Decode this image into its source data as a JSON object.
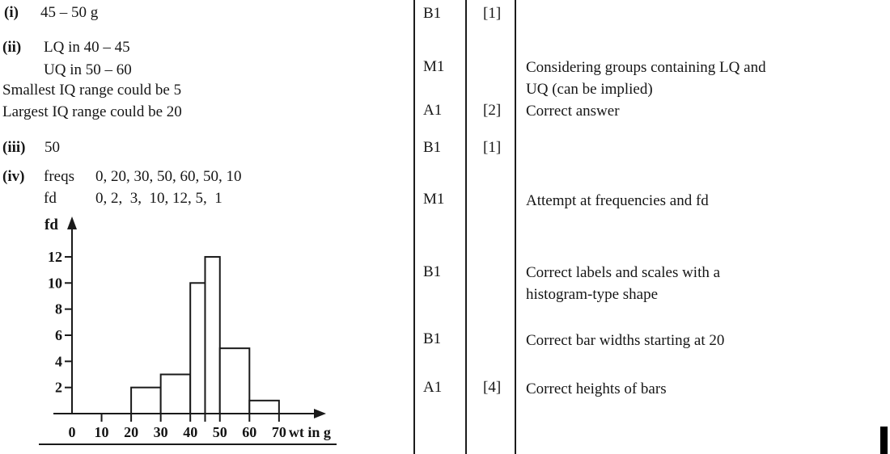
{
  "answers": {
    "part_i": {
      "marker": "(i)",
      "answer": "45 – 50 g"
    },
    "part_ii": {
      "marker": "(ii)",
      "line1": "LQ in 40 – 45",
      "line2": "UQ in 50 – 60",
      "line3": "Smallest IQ range could be 5",
      "line4": "Largest IQ range could be 20"
    },
    "part_iii": {
      "marker": "(iii)",
      "answer": "50"
    },
    "part_iv": {
      "marker": "(iv)",
      "freqs_label": "freqs",
      "freqs_values": "0, 20, 30, 50, 60, 50, 10",
      "fd_label": "fd",
      "fd_values": "0, 2,  3,  10, 12, 5,  1"
    }
  },
  "marks": [
    {
      "code": "B1",
      "total": "[1]",
      "comment": ""
    },
    {
      "code": "M1",
      "total": "",
      "comment": "Considering groups containing LQ and\nUQ (can be implied)"
    },
    {
      "code": "A1",
      "total": "[2]",
      "comment": "Correct answer"
    },
    {
      "code": "B1",
      "total": "[1]",
      "comment": ""
    },
    {
      "code": "M1",
      "total": "",
      "comment": "Attempt at frequencies and fd"
    },
    {
      "code": "B1",
      "total": "",
      "comment": "Correct labels and scales with a\nhistogram-type shape"
    },
    {
      "code": "B1",
      "total": "",
      "comment": "Correct bar widths starting at 20"
    },
    {
      "code": "A1",
      "total": "[4]",
      "comment": "Correct heights of bars"
    }
  ],
  "chart_data": {
    "type": "bar",
    "subtype": "histogram",
    "title": "",
    "ylabel": "fd",
    "xlabel": "wt in g",
    "bins": [
      [
        20,
        30
      ],
      [
        30,
        40
      ],
      [
        40,
        45
      ],
      [
        45,
        50
      ],
      [
        50,
        60
      ],
      [
        60,
        70
      ]
    ],
    "heights": [
      2,
      3,
      10,
      12,
      5,
      1
    ],
    "x_tick_marks": [
      10,
      20,
      30,
      40,
      45,
      50,
      60,
      70
    ],
    "x_tick_labels": [
      0,
      10,
      20,
      30,
      40,
      50,
      60,
      70
    ],
    "y_tick_labels": [
      2,
      4,
      6,
      8,
      10,
      12
    ],
    "xlim": [
      0,
      78
    ],
    "ylim": [
      0,
      14.8
    ],
    "grid": false,
    "line_color": "#1a1a1a",
    "bar_fill": "#ffffff"
  }
}
